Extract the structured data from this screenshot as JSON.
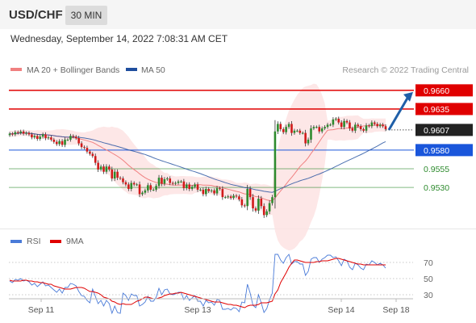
{
  "header": {
    "symbol": "USD/CHF",
    "timeframe": "30 MIN",
    "datetime": "Wednesday, September 14, 2022 7:08:31 AM CET"
  },
  "legend": {
    "ma20_bb": "MA 20 + Bollinger Bands",
    "ma50": "MA 50",
    "source": "Research © 2022 Trading Central",
    "ma20_color": "#f08080",
    "ma50_color": "#1f4e9e"
  },
  "rsi_legend": {
    "rsi": "RSI",
    "ma9": "9MA",
    "rsi_color": "#4a7bd8",
    "ma9_color": "#e00000"
  },
  "chart_data": [
    {
      "type": "candlestick",
      "title": "",
      "ylim": [
        0.9475,
        0.9675
      ],
      "x_ticks": [
        "Sep 11",
        "Sep 13",
        "Sep 14",
        "Sep 18"
      ],
      "levels": [
        {
          "value": 0.966,
          "label": "0.9660",
          "kind": "resistance",
          "color": "#e00000"
        },
        {
          "value": 0.9635,
          "label": "0.9635",
          "kind": "resistance",
          "color": "#e00000"
        },
        {
          "value": 0.9607,
          "label": "0.9607",
          "kind": "current",
          "color": "#222222"
        },
        {
          "value": 0.958,
          "label": "0.9580",
          "kind": "pivot",
          "color": "#1a56db"
        },
        {
          "value": 0.9555,
          "label": "0.9555",
          "kind": "support",
          "color": "#2e8b2e"
        },
        {
          "value": 0.953,
          "label": "0.9530",
          "kind": "support",
          "color": "#2e8b2e"
        }
      ],
      "arrow": {
        "direction": "up",
        "from": 0.9607,
        "to": 0.966
      },
      "close_series": [
        0.9602,
        0.9601,
        0.9604,
        0.9603,
        0.9605,
        0.9602,
        0.9603,
        0.9601,
        0.9597,
        0.9599,
        0.9595,
        0.9598,
        0.9601,
        0.9596,
        0.9597,
        0.9594,
        0.9591,
        0.9588,
        0.9592,
        0.9587,
        0.9594,
        0.9594,
        0.9599,
        0.9598,
        0.9596,
        0.9589,
        0.9584,
        0.9583,
        0.9578,
        0.9575,
        0.9572,
        0.9563,
        0.9554,
        0.9558,
        0.9551,
        0.9558,
        0.9554,
        0.9542,
        0.9551,
        0.9543,
        0.9542,
        0.9537,
        0.9534,
        0.9528,
        0.9536,
        0.9534,
        0.9534,
        0.9521,
        0.9523,
        0.9526,
        0.9533,
        0.9527,
        0.9527,
        0.9532,
        0.9543,
        0.9535,
        0.9541,
        0.9542,
        0.9536,
        0.9535,
        0.9536,
        0.9538,
        0.9538,
        0.9529,
        0.9534,
        0.9528,
        0.9531,
        0.9534,
        0.9527,
        0.9527,
        0.9521,
        0.9528,
        0.9525,
        0.9526,
        0.9522,
        0.9529,
        0.9528,
        0.9517,
        0.9517,
        0.9518,
        0.9516,
        0.9519,
        0.9518,
        0.9514,
        0.9506,
        0.9505,
        0.9528,
        0.9517,
        0.9502,
        0.9499,
        0.9515,
        0.9505,
        0.9493,
        0.9498,
        0.9509,
        0.9517,
        0.9605,
        0.9615,
        0.9608,
        0.9604,
        0.9611,
        0.9615,
        0.9603,
        0.9606,
        0.9606,
        0.9603,
        0.9603,
        0.9589,
        0.9594,
        0.9609,
        0.9611,
        0.9611,
        0.9605,
        0.9609,
        0.9611,
        0.9614,
        0.9614,
        0.9621,
        0.9622,
        0.9617,
        0.9611,
        0.9619,
        0.9617,
        0.9609,
        0.9606,
        0.9614,
        0.9612,
        0.9608,
        0.9606,
        0.9613,
        0.9612,
        0.9617,
        0.9615,
        0.9612,
        0.9614,
        0.9612,
        0.9608
      ]
    },
    {
      "type": "line",
      "title": "",
      "ylim": [
        20,
        85
      ],
      "y_ticks": [
        70,
        50,
        30
      ],
      "series": [
        {
          "name": "RSI",
          "values": [
            47,
            45,
            49,
            48,
            50,
            47,
            48,
            46,
            42,
            44,
            40,
            43,
            46,
            41,
            42,
            39,
            36,
            33,
            37,
            32,
            39,
            39,
            44,
            43,
            41,
            34,
            29,
            28,
            23,
            20,
            37,
            28,
            19,
            23,
            16,
            23,
            19,
            7,
            16,
            8,
            7,
            32,
            29,
            23,
            31,
            29,
            29,
            16,
            18,
            21,
            28,
            22,
            22,
            27,
            38,
            30,
            36,
            37,
            31,
            30,
            31,
            33,
            33,
            24,
            29,
            23,
            26,
            29,
            22,
            22,
            16,
            23,
            20,
            21,
            17,
            24,
            23,
            12,
            12,
            13,
            11,
            14,
            13,
            9,
            21,
            20,
            43,
            32,
            17,
            14,
            30,
            20,
            8,
            13,
            24,
            32,
            80,
            80,
            73,
            69,
            76,
            80,
            68,
            71,
            71,
            68,
            68,
            54,
            59,
            74,
            76,
            76,
            70,
            74,
            76,
            79,
            79,
            76,
            77,
            72,
            66,
            74,
            72,
            64,
            61,
            69,
            67,
            63,
            61,
            68,
            67,
            72,
            70,
            67,
            69,
            67,
            63
          ]
        },
        {
          "name": "9MA",
          "values": [
            48,
            47,
            47,
            47,
            47,
            48,
            48,
            47,
            47,
            46,
            46,
            45,
            45,
            44,
            43,
            43,
            41,
            40,
            39,
            38,
            37,
            37,
            37,
            38,
            39,
            39,
            39,
            38,
            36,
            34,
            34,
            33,
            32,
            30,
            27,
            26,
            25,
            22,
            21,
            19,
            18,
            19,
            18,
            18,
            18,
            20,
            22,
            23,
            25,
            27,
            27,
            26,
            25,
            25,
            26,
            27,
            29,
            30,
            31,
            31,
            32,
            32,
            33,
            32,
            31,
            30,
            29,
            28,
            27,
            26,
            25,
            24,
            23,
            22,
            21,
            21,
            21,
            20,
            19,
            18,
            18,
            17,
            17,
            16,
            15,
            14,
            16,
            17,
            17,
            17,
            18,
            20,
            20,
            20,
            21,
            22,
            31,
            36,
            45,
            51,
            57,
            64,
            69,
            73,
            73,
            72,
            71,
            70,
            70,
            70,
            70,
            71,
            71,
            72,
            72,
            72,
            73,
            74,
            75,
            75,
            74,
            73,
            72,
            71,
            70,
            69,
            68,
            68,
            67,
            67,
            67,
            67,
            67,
            67,
            67,
            67,
            67
          ]
        }
      ]
    }
  ]
}
